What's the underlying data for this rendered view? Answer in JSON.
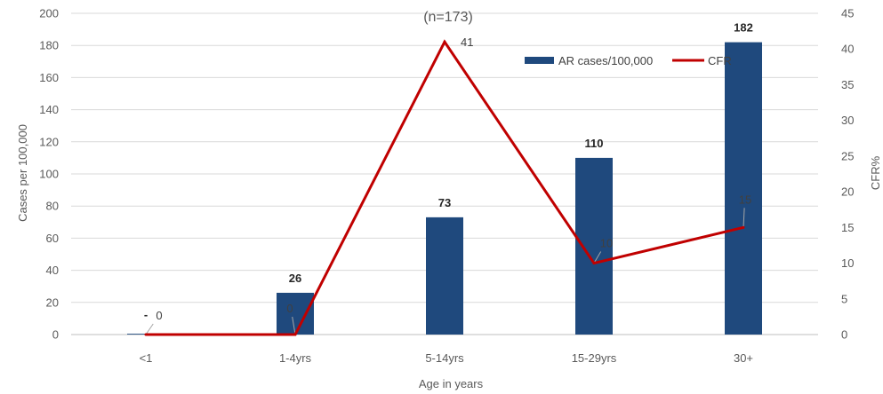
{
  "chart_data": {
    "type": "bar",
    "title": "(n=173)",
    "xlabel": "Age in years",
    "ylabel": "Cases per 100,000",
    "y2label": "CFR%",
    "categories": [
      "<1",
      "1-4yrs",
      "5-14yrs",
      "15-29yrs",
      "30+"
    ],
    "ylim": [
      0,
      200
    ],
    "y2lim": [
      0,
      45
    ],
    "yticks": [
      "0",
      "20",
      "40",
      "60",
      "80",
      "100",
      "120",
      "140",
      "160",
      "180",
      "200"
    ],
    "y2ticks": [
      "0",
      "5",
      "10",
      "15",
      "20",
      "25",
      "30",
      "35",
      "40",
      "45"
    ],
    "grid": true,
    "legend_position": "top-right",
    "series": [
      {
        "name": "AR cases/100,000",
        "type": "bar",
        "axis": "left",
        "color": "#1F497D",
        "values": [
          0.5,
          26,
          73,
          110,
          182
        ],
        "labels": [
          "-",
          "26",
          "73",
          "110",
          "182"
        ]
      },
      {
        "name": "CFR",
        "type": "line",
        "axis": "right",
        "color": "#C00000",
        "values": [
          0,
          0,
          41,
          10,
          15
        ],
        "labels": [
          "0",
          "0",
          "41",
          "10",
          "15"
        ]
      }
    ]
  }
}
